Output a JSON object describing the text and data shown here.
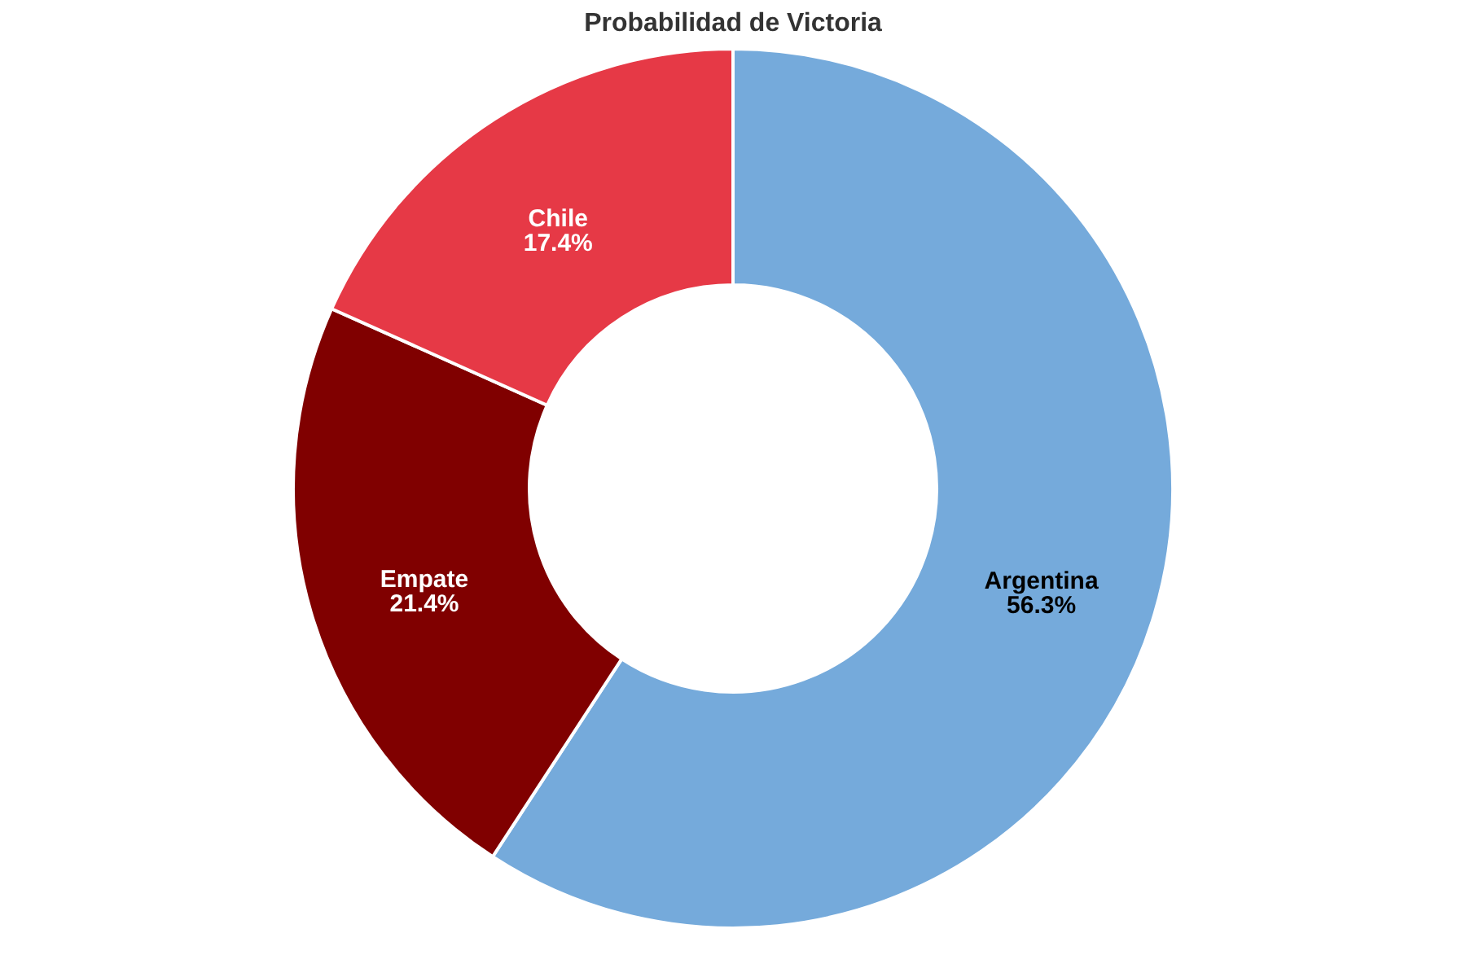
{
  "chart_data": {
    "type": "donut",
    "title": "Probabilidad de Victoria",
    "categories": [
      "Argentina",
      "Empate",
      "Chile"
    ],
    "values": [
      56.3,
      21.4,
      17.4
    ],
    "value_labels": [
      "56.3%",
      "21.4%",
      "17.4%"
    ],
    "colors": [
      "#75aadb",
      "#800000",
      "#e63946"
    ]
  }
}
